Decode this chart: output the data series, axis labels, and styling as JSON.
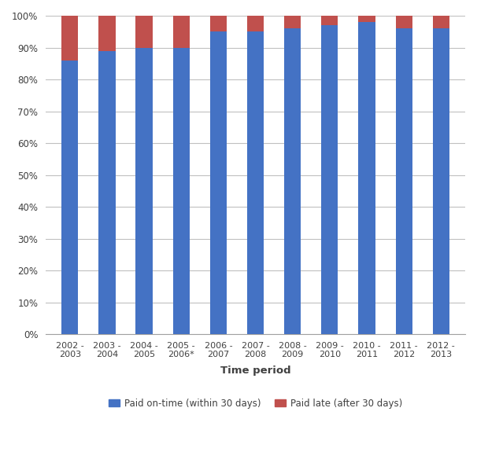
{
  "categories": [
    "2002 -\n2003",
    "2003 -\n2004",
    "2004 -\n2005",
    "2005 -\n2006*",
    "2006 -\n2007",
    "2007 -\n2008",
    "2008 -\n2009",
    "2009 -\n2010",
    "2010 -\n2011",
    "2011 -\n2012",
    "2012 -\n2013"
  ],
  "on_time": [
    86,
    89,
    90,
    90,
    95,
    95,
    96,
    97,
    98,
    96,
    96
  ],
  "late": [
    14,
    11,
    10,
    10,
    5,
    5,
    4,
    3,
    2,
    4,
    4
  ],
  "color_on_time": "#4472C4",
  "color_late": "#C0504D",
  "xlabel": "Time period",
  "legend_on_time": "Paid on-time (within 30 days)",
  "legend_late": "Paid late (after 30 days)",
  "ylim": [
    0,
    100
  ],
  "yticks": [
    0,
    10,
    20,
    30,
    40,
    50,
    60,
    70,
    80,
    90,
    100
  ],
  "ytick_labels": [
    "0%",
    "10%",
    "20%",
    "30%",
    "40%",
    "50%",
    "60%",
    "70%",
    "80%",
    "90%",
    "100%"
  ],
  "background_color": "#ffffff",
  "grid_color": "#c0c0c0",
  "bar_width": 0.45,
  "spine_color": "#a0a0a0"
}
